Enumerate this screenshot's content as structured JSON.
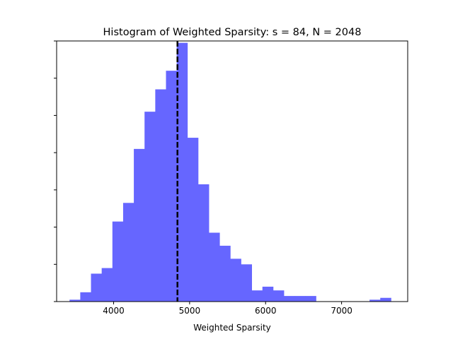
{
  "chart_data": {
    "type": "bar",
    "title": "Histogram of Weighted Sparsity: s =  84, N = 2048",
    "xlabel": "Weighted Sparsity",
    "ylabel": "",
    "xlim": [
      3250,
      7870
    ],
    "ylim": [
      0,
      70
    ],
    "x_ticks": [
      4000,
      5000,
      6000,
      7000
    ],
    "x_tick_labels": [
      "4000",
      "5000",
      "6000",
      "7000"
    ],
    "y_ticks": [
      0,
      10,
      20,
      30,
      40,
      50,
      60,
      70
    ],
    "y_tick_labels_visible": false,
    "bin_edges": [
      3420,
      3561,
      3702,
      3843,
      3984,
      4125,
      4266,
      4407,
      4548,
      4689,
      4830,
      4971,
      5112,
      5253,
      5394,
      5535,
      5676,
      5817,
      5958,
      6099,
      6240,
      6381,
      6522,
      6663,
      6804,
      6945,
      7086,
      7227,
      7368,
      7509,
      7650
    ],
    "counts": [
      0.5,
      2.5,
      7.5,
      9,
      21.5,
      26.5,
      41,
      51,
      57,
      62,
      69.5,
      44,
      31.5,
      18.5,
      15,
      11.5,
      10,
      3,
      4,
      3,
      1.5,
      1.5,
      1.5,
      0,
      0,
      0,
      0,
      0,
      0.5,
      1
    ],
    "bar_color": "#6666ff",
    "vline_x": 4840,
    "vline_style": "dashed",
    "vline_color": "#000000",
    "grid": false
  }
}
